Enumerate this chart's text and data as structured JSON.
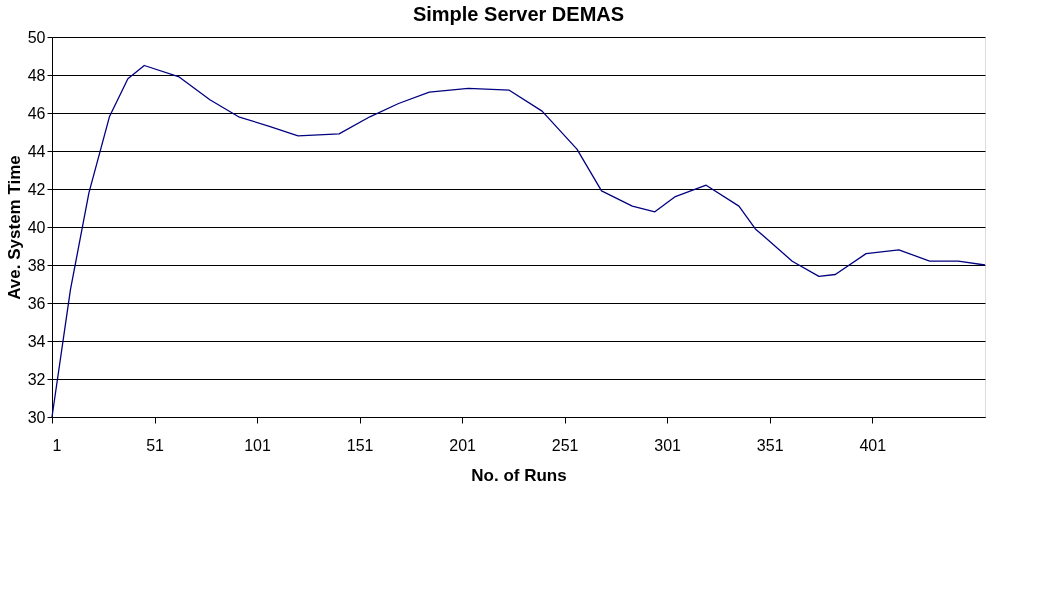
{
  "chart_data": {
    "type": "line",
    "title": "Simple Server DEMAS",
    "xlabel": "No. of Runs",
    "ylabel": "Ave. System Time",
    "x": [
      1,
      10,
      19,
      29,
      38,
      46,
      63,
      78,
      92,
      107,
      121,
      141,
      156,
      170,
      185,
      204,
      224,
      240,
      257,
      269,
      284,
      295,
      305,
      320,
      336,
      344,
      362,
      375,
      383,
      398,
      414,
      429,
      443,
      456
    ],
    "series": [
      {
        "color": "#000080",
        "values": [
          30,
          36.7,
          41.8,
          45.8,
          47.8,
          48.5,
          47.9,
          46.7,
          45.8,
          45.3,
          44.8,
          44.9,
          45.8,
          46.5,
          47.1,
          47.3,
          47.2,
          46.1,
          44.1,
          41.9,
          41.1,
          40.8,
          41.6,
          42.2,
          41.1,
          39.9,
          38.2,
          37.4,
          37.5,
          38.6,
          38.8,
          38.2,
          38.2,
          38.0
        ]
      }
    ],
    "xlim": [
      1,
      456
    ],
    "xticks": [
      1,
      51,
      101,
      151,
      201,
      251,
      301,
      351,
      401
    ],
    "ylim": [
      30,
      50
    ],
    "yticks": [
      30,
      32,
      34,
      36,
      38,
      40,
      42,
      44,
      46,
      48,
      50
    ],
    "grid": "y",
    "legend": false,
    "marker": "none",
    "line_style": "solid"
  }
}
